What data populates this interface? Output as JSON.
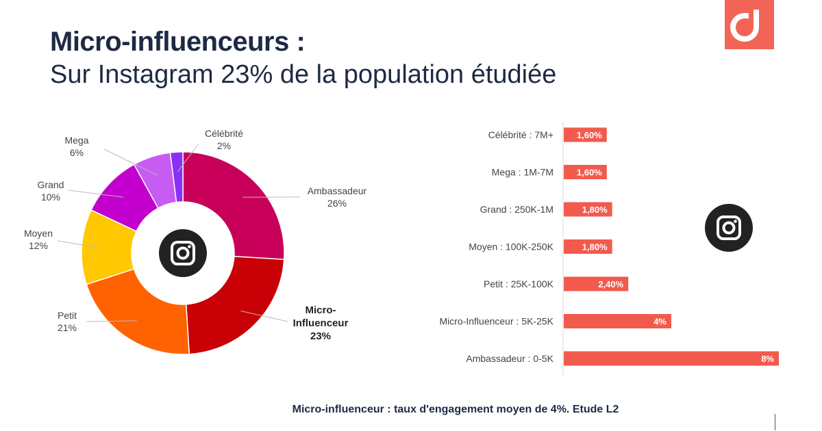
{
  "header": {
    "title": "Micro-influenceurs :",
    "subtitle": "Sur Instagram 23% de la population étudiée"
  },
  "brand": {
    "logo_color": "#f26556",
    "logo_icon": "d-logo-icon"
  },
  "footer": {
    "text": "Micro-influenceur : taux d'engagement moyen  de 4%.  Etude L2"
  },
  "center_icon": "instagram-icon",
  "chart_data": [
    {
      "type": "pie",
      "title": "",
      "labels": [
        "Ambassadeur",
        "Micro-Influenceur",
        "Petit",
        "Moyen",
        "Grand",
        "Mega",
        "Célébrité"
      ],
      "values": [
        26,
        23,
        21,
        12,
        10,
        6,
        2
      ],
      "value_labels": [
        "26%",
        "23%",
        "21%",
        "12%",
        "10%",
        "6%",
        "2%"
      ],
      "colors": [
        "#c8005a",
        "#c90006",
        "#ff6200",
        "#ffc800",
        "#c300ce",
        "#c75cf2",
        "#8b2ff6"
      ],
      "highlight": "Micro-Influenceur",
      "highlight_label_lines": [
        "Micro-",
        "Influenceur",
        "23%"
      ]
    },
    {
      "type": "bar",
      "orientation": "horizontal",
      "categories": [
        "Célébrité  : 7M+",
        "Mega : 1M-7M",
        "Grand : 250K-1M",
        "Moyen : 100K-250K",
        "Petit : 25K-100K",
        "Micro-Influenceur : 5K-25K",
        "Ambassadeur : 0-5K"
      ],
      "values": [
        1.6,
        1.6,
        1.8,
        1.8,
        2.4,
        4,
        8
      ],
      "value_labels": [
        "1,60%",
        "1,60%",
        "1,80%",
        "1,80%",
        "2,40%",
        "4%",
        "8%"
      ],
      "bar_color": "#f25a4e",
      "xlim": [
        0,
        8
      ]
    }
  ]
}
